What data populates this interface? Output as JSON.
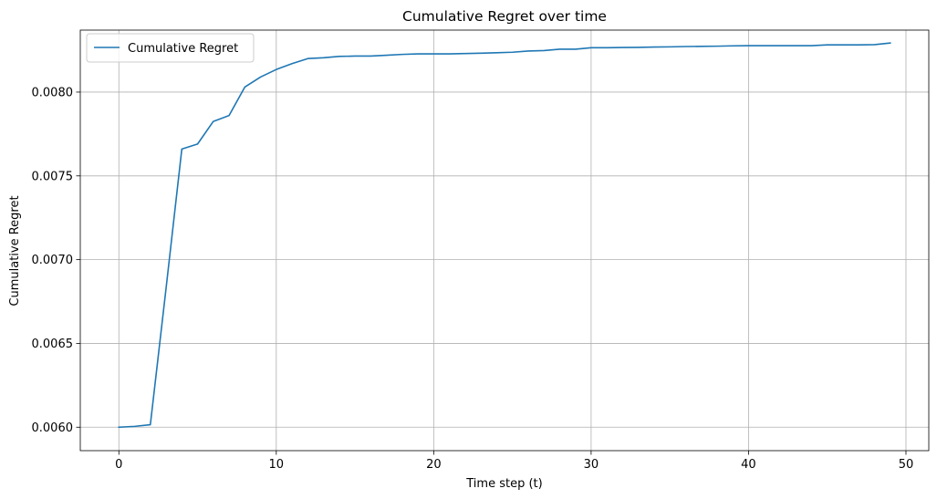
{
  "chart_data": {
    "type": "line",
    "title": "Cumulative Regret over time",
    "xlabel": "Time step (t)",
    "ylabel": "Cumulative Regret",
    "xlim": [
      -2.45,
      51.45
    ],
    "ylim": [
      0.00586,
      0.00837
    ],
    "xticks": [
      0,
      10,
      20,
      30,
      40,
      50
    ],
    "xtick_labels": [
      "0",
      "10",
      "20",
      "30",
      "40",
      "50"
    ],
    "yticks": [
      0.006,
      0.0065,
      0.007,
      0.0075,
      0.008
    ],
    "ytick_labels": [
      "0.0060",
      "0.0065",
      "0.0070",
      "0.0075",
      "0.0080"
    ],
    "grid": true,
    "legend_position": "top-left",
    "series": [
      {
        "name": "Cumulative Regret",
        "color": "#1f77b4",
        "x": [
          0,
          1,
          2,
          3,
          4,
          5,
          6,
          7,
          8,
          9,
          10,
          11,
          12,
          13,
          14,
          15,
          16,
          17,
          18,
          19,
          20,
          21,
          22,
          23,
          24,
          25,
          26,
          27,
          28,
          29,
          30,
          31,
          32,
          33,
          34,
          35,
          36,
          37,
          38,
          39,
          40,
          41,
          42,
          43,
          44,
          45,
          46,
          47,
          48,
          49
        ],
        "values": [
          0.006,
          0.006005,
          0.006015,
          0.00683,
          0.00766,
          0.00769,
          0.007825,
          0.00786,
          0.00803,
          0.00809,
          0.008135,
          0.00817,
          0.0082,
          0.008205,
          0.008213,
          0.008215,
          0.008215,
          0.00822,
          0.008225,
          0.008228,
          0.008228,
          0.008228,
          0.00823,
          0.008232,
          0.008235,
          0.008238,
          0.008245,
          0.008248,
          0.008256,
          0.008256,
          0.008265,
          0.008265,
          0.008266,
          0.008267,
          0.008269,
          0.00827,
          0.008272,
          0.008273,
          0.008274,
          0.008276,
          0.008277,
          0.008277,
          0.008277,
          0.008277,
          0.008277,
          0.008282,
          0.008282,
          0.008282,
          0.008283,
          0.008293
        ]
      }
    ]
  }
}
